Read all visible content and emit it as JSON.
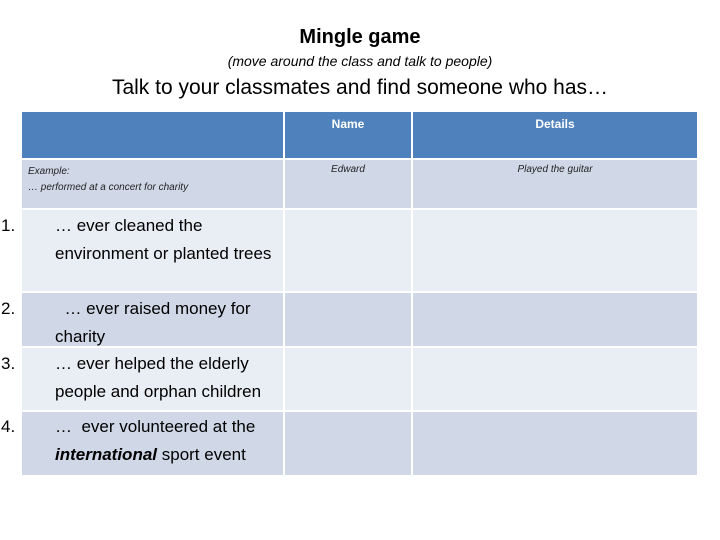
{
  "title": "Mingle game",
  "subtitle": "(move around the class and talk to people)",
  "heading": "Talk to your classmates and find someone who has…",
  "table": {
    "colors": {
      "header": "#4f81bd",
      "row_dark": "#d0d8e8",
      "row_light": "#e9edf4"
    },
    "headers": [
      "",
      "Name",
      "Details"
    ],
    "example": {
      "label": "Example:",
      "text": "… performed at a concert for charity",
      "name": "Edward",
      "details": "Played the guitar"
    },
    "items": [
      {
        "number": "1.",
        "text": "…  ever cleaned the environment or planted trees",
        "name": "",
        "details": ""
      },
      {
        "number": "2.",
        "text": "  … ever raised money for charity",
        "name": "",
        "details": ""
      },
      {
        "number": "3.",
        "text": "…  ever helped the elderly people and orphan children",
        "name": "",
        "details": ""
      },
      {
        "number": "4.",
        "text_before": "…  ever volunteered at the ",
        "text_emphasis": "international",
        "text_after": " sport event",
        "name": "",
        "details": ""
      }
    ]
  }
}
